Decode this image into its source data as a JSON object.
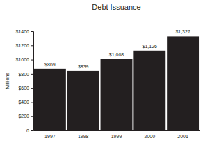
{
  "chart_data": {
    "type": "bar",
    "title": "Debt Issuance",
    "y_label": "Millions",
    "categories": [
      "1997",
      "1998",
      "1999",
      "2000",
      "2001"
    ],
    "values": [
      869,
      839,
      1008,
      1126,
      1327
    ],
    "value_labels": [
      "$869",
      "$839",
      "$1,008",
      "$1,126",
      "$1,327"
    ],
    "data_labels": true,
    "color": "#231f20",
    "ylim": [
      0,
      1400
    ],
    "yticks": [
      0,
      {
        "value": 200,
        "label": "$200"
      },
      {
        "value": 400,
        "label": "$400"
      },
      {
        "value": 600,
        "label": "$600"
      },
      {
        "value": 800,
        "label": "$800"
      },
      {
        "value": 1000,
        "label": "$1000"
      },
      {
        "value": 1200,
        "label": "$1200"
      },
      {
        "value": 1400,
        "label": "$1400"
      }
    ],
    "grid": false
  }
}
